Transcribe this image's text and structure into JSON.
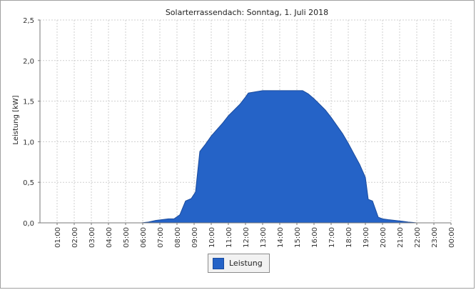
{
  "chart_data": {
    "type": "area",
    "title": "Solarterrassendach: Sonntag, 1. Juli 2018",
    "xlabel": "",
    "ylabel": "Leistung [kW]",
    "ylim": [
      0,
      2.5
    ],
    "yticks": [
      "0,0",
      "0,5",
      "1,0",
      "1,5",
      "2,0",
      "2,5"
    ],
    "xticks": [
      "01:00",
      "02:00",
      "03:00",
      "04:00",
      "05:00",
      "06:00",
      "07:00",
      "08:00",
      "09:00",
      "10:00",
      "11:00",
      "12:00",
      "13:00",
      "14:00",
      "15:00",
      "16:00",
      "17:00",
      "18:00",
      "19:00",
      "20:00",
      "21:00",
      "22:00",
      "23:00",
      "00:00"
    ],
    "grid": true,
    "legend_position": "bottom",
    "color": "#2563c7",
    "series": [
      {
        "name": "Leistung",
        "x": [
          "00:00",
          "05:55",
          "06:20",
          "06:45",
          "07:30",
          "07:50",
          "08:10",
          "08:30",
          "08:50",
          "09:05",
          "09:20",
          "09:40",
          "10:00",
          "10:20",
          "10:40",
          "11:00",
          "11:20",
          "11:40",
          "12:00",
          "12:10",
          "13:00",
          "14:00",
          "15:00",
          "15:20",
          "15:40",
          "16:00",
          "16:20",
          "16:40",
          "17:00",
          "17:20",
          "17:40",
          "18:00",
          "18:20",
          "18:40",
          "19:00",
          "19:10",
          "19:25",
          "19:45",
          "20:00",
          "20:20",
          "20:45",
          "21:10",
          "21:30",
          "21:45",
          "22:00",
          "23:00",
          "00:00"
        ],
        "values": [
          0,
          0,
          0.01,
          0.03,
          0.05,
          0.05,
          0.1,
          0.27,
          0.3,
          0.38,
          0.88,
          0.97,
          1.07,
          1.15,
          1.23,
          1.32,
          1.39,
          1.46,
          1.55,
          1.6,
          1.63,
          1.63,
          1.63,
          1.63,
          1.59,
          1.53,
          1.46,
          1.39,
          1.3,
          1.2,
          1.1,
          0.98,
          0.85,
          0.72,
          0.56,
          0.29,
          0.27,
          0.07,
          0.05,
          0.04,
          0.03,
          0.02,
          0.01,
          0.005,
          0,
          0,
          0
        ]
      }
    ]
  }
}
